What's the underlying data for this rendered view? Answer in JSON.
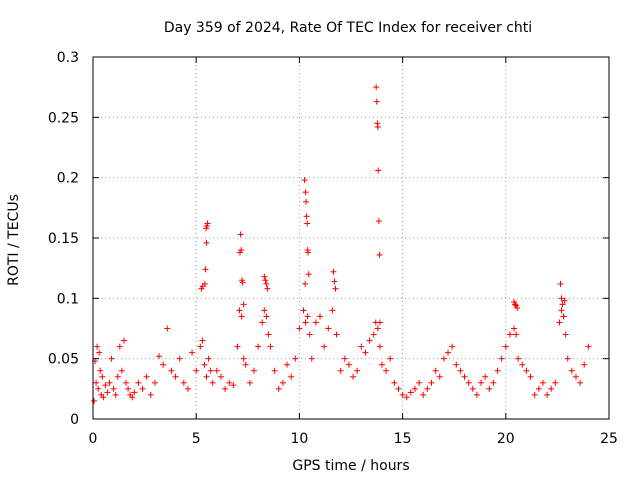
{
  "chart_data": {
    "type": "scatter",
    "title": "Day 359 of 2024, Rate Of TEC Index for receiver chti",
    "xlabel": "GPS time / hours",
    "ylabel": "ROTI / TECUs",
    "xlim": [
      0,
      25
    ],
    "ylim": [
      0,
      0.3
    ],
    "xticks": [
      0,
      5,
      10,
      15,
      20,
      25
    ],
    "xtick_labels": [
      "0",
      "5",
      "10",
      "15",
      "20",
      "25"
    ],
    "yticks": [
      0,
      0.05,
      0.1,
      0.15,
      0.2,
      0.25,
      0.3
    ],
    "ytick_labels": [
      "0",
      "0.05",
      "0.1",
      "0.15",
      "0.2",
      "0.25",
      "0.3"
    ],
    "grid": true,
    "marker": "+",
    "color": "#ff0000",
    "series": [
      {
        "name": "chti",
        "x": [
          0.05,
          0.1,
          0.15,
          0.2,
          0.25,
          0.3,
          0.35,
          0.4,
          0.45,
          0.5,
          0.6,
          0.7,
          0.8,
          0.9,
          1.0,
          1.1,
          1.2,
          1.3,
          1.4,
          1.5,
          1.6,
          1.7,
          1.8,
          1.9,
          2.0,
          2.2,
          2.4,
          2.6,
          2.8,
          3.0,
          3.2,
          3.4,
          3.6,
          3.8,
          4.0,
          4.2,
          4.4,
          4.6,
          4.8,
          5.0,
          5.2,
          5.3,
          5.4,
          5.5,
          5.6,
          5.7,
          5.8,
          6.0,
          6.2,
          6.4,
          6.6,
          6.8,
          7.0,
          7.1,
          7.2,
          7.3,
          7.4,
          7.6,
          7.8,
          8.0,
          8.2,
          8.3,
          8.4,
          8.5,
          8.6,
          8.8,
          9.0,
          9.2,
          9.4,
          9.6,
          9.8,
          10.0,
          10.2,
          10.3,
          10.4,
          10.5,
          10.6,
          10.8,
          11.0,
          11.2,
          11.4,
          11.6,
          11.8,
          12.0,
          12.2,
          12.4,
          12.6,
          12.8,
          13.0,
          13.2,
          13.4,
          13.6,
          13.7,
          13.8,
          13.9,
          14.0,
          14.2,
          14.4,
          14.6,
          14.8,
          15.0,
          15.2,
          15.4,
          15.6,
          15.8,
          16.0,
          16.2,
          16.4,
          16.6,
          16.8,
          17.0,
          17.2,
          17.4,
          17.6,
          17.8,
          18.0,
          18.2,
          18.4,
          18.6,
          18.8,
          19.0,
          19.2,
          19.4,
          19.6,
          19.8,
          20.0,
          20.2,
          20.4,
          20.5,
          20.6,
          20.8,
          21.0,
          21.2,
          21.4,
          21.6,
          21.8,
          22.0,
          22.2,
          22.4,
          22.6,
          22.7,
          22.8,
          22.9,
          23.0,
          23.2,
          23.4,
          23.6,
          23.8,
          24.0,
          5.25,
          5.32,
          5.42,
          5.45,
          5.5,
          5.52,
          5.55,
          5.48,
          7.15,
          7.18,
          7.22,
          7.25,
          7.3,
          7.12,
          10.25,
          10.3,
          10.32,
          10.35,
          10.38,
          10.4,
          10.42,
          10.45,
          10.28,
          11.65,
          11.7,
          11.75,
          13.72,
          13.75,
          13.78,
          13.8,
          13.82,
          13.85,
          13.88,
          13.9,
          20.4,
          20.45,
          20.5,
          20.55,
          22.65,
          22.7,
          22.75,
          22.8,
          22.85,
          8.3,
          8.35,
          8.4,
          8.45
        ],
        "y": [
          0.015,
          0.048,
          0.03,
          0.06,
          0.025,
          0.055,
          0.04,
          0.02,
          0.035,
          0.018,
          0.028,
          0.022,
          0.03,
          0.05,
          0.025,
          0.02,
          0.035,
          0.06,
          0.04,
          0.065,
          0.03,
          0.025,
          0.02,
          0.018,
          0.022,
          0.03,
          0.025,
          0.035,
          0.02,
          0.03,
          0.052,
          0.045,
          0.075,
          0.04,
          0.035,
          0.05,
          0.03,
          0.025,
          0.055,
          0.04,
          0.06,
          0.065,
          0.045,
          0.035,
          0.05,
          0.04,
          0.03,
          0.04,
          0.035,
          0.025,
          0.03,
          0.028,
          0.06,
          0.09,
          0.085,
          0.05,
          0.045,
          0.03,
          0.04,
          0.06,
          0.08,
          0.09,
          0.085,
          0.07,
          0.06,
          0.04,
          0.025,
          0.03,
          0.045,
          0.035,
          0.05,
          0.075,
          0.09,
          0.08,
          0.085,
          0.07,
          0.05,
          0.08,
          0.085,
          0.06,
          0.075,
          0.09,
          0.07,
          0.04,
          0.05,
          0.045,
          0.035,
          0.04,
          0.06,
          0.055,
          0.065,
          0.07,
          0.08,
          0.075,
          0.06,
          0.045,
          0.04,
          0.05,
          0.03,
          0.025,
          0.02,
          0.018,
          0.022,
          0.025,
          0.03,
          0.02,
          0.025,
          0.03,
          0.04,
          0.035,
          0.05,
          0.055,
          0.06,
          0.045,
          0.04,
          0.035,
          0.03,
          0.025,
          0.02,
          0.03,
          0.035,
          0.025,
          0.03,
          0.04,
          0.05,
          0.06,
          0.07,
          0.075,
          0.07,
          0.05,
          0.045,
          0.04,
          0.035,
          0.02,
          0.025,
          0.03,
          0.02,
          0.025,
          0.03,
          0.08,
          0.09,
          0.085,
          0.07,
          0.05,
          0.04,
          0.035,
          0.03,
          0.045,
          0.06,
          0.108,
          0.11,
          0.112,
          0.124,
          0.146,
          0.16,
          0.162,
          0.158,
          0.153,
          0.14,
          0.115,
          0.113,
          0.095,
          0.138,
          0.198,
          0.188,
          0.18,
          0.168,
          0.162,
          0.14,
          0.138,
          0.12,
          0.112,
          0.122,
          0.114,
          0.108,
          0.275,
          0.263,
          0.245,
          0.242,
          0.206,
          0.164,
          0.136,
          0.08,
          0.097,
          0.095,
          0.094,
          0.092,
          0.112,
          0.1,
          0.095,
          0.085,
          0.098,
          0.118,
          0.115,
          0.112,
          0.108
        ]
      }
    ]
  }
}
